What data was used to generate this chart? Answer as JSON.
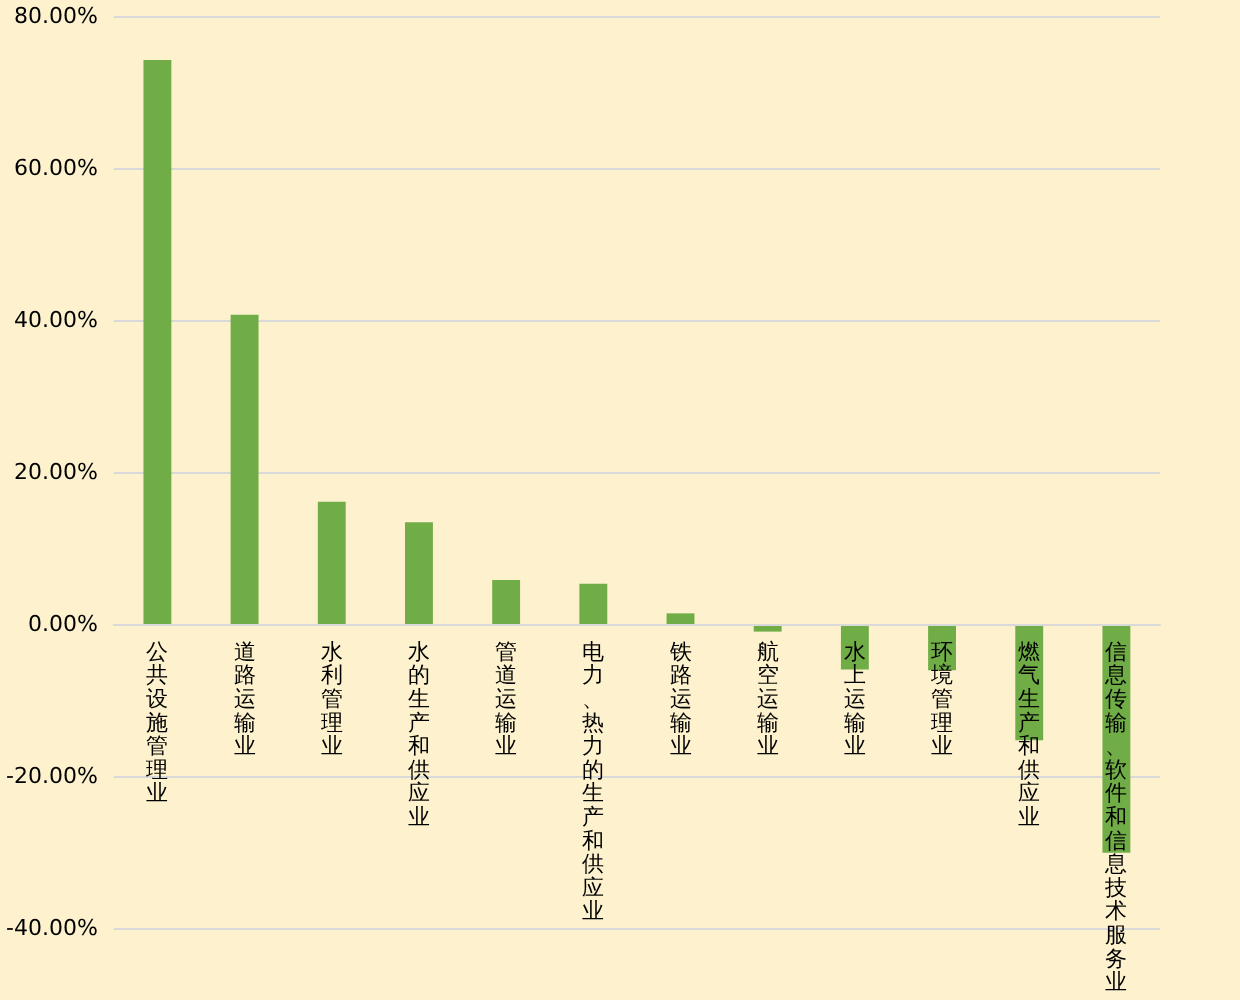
{
  "chart_data": {
    "type": "bar",
    "categories": [
      "公共设施管理业",
      "道路运输业",
      "水利管理业",
      "水的生产和供应业",
      "管道运输业",
      "电力、热力的生产和供应业",
      "铁路运输业",
      "航空运输业",
      "水上运输业",
      "环境管理业",
      "燃气生产和供应业",
      "信息传输、软件和信息技术服务业"
    ],
    "values": [
      74.2,
      40.7,
      16.1,
      13.4,
      5.8,
      5.3,
      1.4,
      -1.0,
      -6.0,
      -6.1,
      -15.3,
      -30.1
    ],
    "color": "#70ad47",
    "ylim": [
      -40,
      80
    ],
    "yticks": [
      {
        "value": -40,
        "label": "-40.00%"
      },
      {
        "value": -20,
        "label": "-20.00%"
      },
      {
        "value": 0,
        "label": "0.00%"
      },
      {
        "value": 20,
        "label": "20.00%"
      },
      {
        "value": 40,
        "label": "40.00%"
      },
      {
        "value": 60,
        "label": "60.00%"
      },
      {
        "value": 80,
        "label": "80.00%"
      }
    ],
    "grid": "y"
  }
}
